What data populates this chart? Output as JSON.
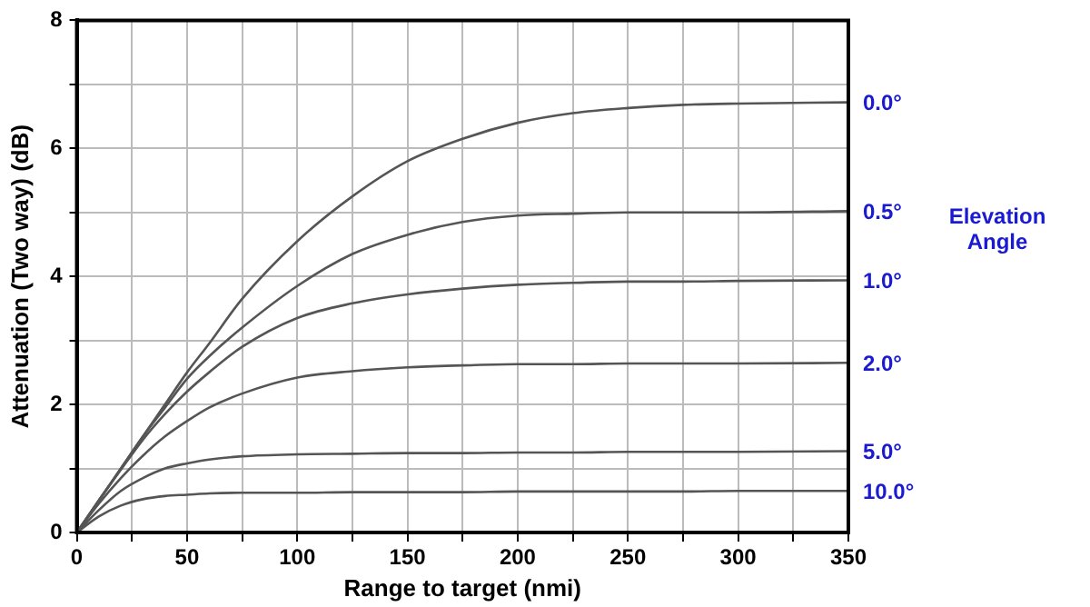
{
  "chart_data": {
    "type": "line",
    "xlabel": "Range to target (nmi)",
    "ylabel": "Attenuation (Two way) (dB)",
    "legend_title": "Elevation Angle",
    "x": [
      0,
      10,
      20,
      30,
      40,
      50,
      60,
      75,
      100,
      125,
      150,
      175,
      200,
      225,
      250,
      275,
      300,
      350
    ],
    "xlim": [
      0,
      350
    ],
    "xticks": [
      0,
      {
        "value": 25,
        "label": null
      },
      50,
      {
        "value": 75,
        "label": null
      },
      100,
      {
        "value": 125,
        "label": null
      },
      150,
      {
        "value": 175,
        "label": null
      },
      200,
      {
        "value": 225,
        "label": null
      },
      250,
      {
        "value": 275,
        "label": null
      },
      300,
      {
        "value": 325,
        "label": null
      },
      350
    ],
    "ylim": [
      0,
      8
    ],
    "yticks": [
      0,
      {
        "value": 1,
        "label": null
      },
      2,
      {
        "value": 3,
        "label": null
      },
      4,
      {
        "value": 5,
        "label": null
      },
      6,
      {
        "value": 7,
        "label": null
      },
      8
    ],
    "grid": true,
    "marker": "none",
    "line_style": "solid",
    "series": [
      {
        "name": "0.0°",
        "color": "#555555",
        "values": [
          0,
          0.5,
          1.0,
          1.5,
          2.0,
          2.5,
          2.95,
          3.65,
          4.55,
          5.25,
          5.8,
          6.15,
          6.4,
          6.55,
          6.63,
          6.68,
          6.7,
          6.72
        ]
      },
      {
        "name": "0.5°",
        "color": "#555555",
        "values": [
          0,
          0.5,
          1.0,
          1.5,
          1.95,
          2.4,
          2.75,
          3.2,
          3.85,
          4.35,
          4.65,
          4.85,
          4.95,
          4.98,
          5.0,
          5.0,
          5.0,
          5.02
        ]
      },
      {
        "name": "1.0°",
        "color": "#555555",
        "values": [
          0,
          0.5,
          0.98,
          1.45,
          1.85,
          2.2,
          2.5,
          2.9,
          3.35,
          3.58,
          3.72,
          3.81,
          3.87,
          3.9,
          3.92,
          3.92,
          3.93,
          3.94
        ]
      },
      {
        "name": "2.0°",
        "color": "#555555",
        "values": [
          0,
          0.45,
          0.85,
          1.2,
          1.5,
          1.74,
          1.95,
          2.17,
          2.42,
          2.52,
          2.58,
          2.61,
          2.63,
          2.63,
          2.64,
          2.64,
          2.64,
          2.65
        ]
      },
      {
        "name": "5.0°",
        "color": "#555555",
        "values": [
          0,
          0.35,
          0.65,
          0.85,
          1.0,
          1.08,
          1.14,
          1.19,
          1.22,
          1.23,
          1.24,
          1.24,
          1.25,
          1.25,
          1.26,
          1.26,
          1.26,
          1.27
        ]
      },
      {
        "name": "10.0°",
        "color": "#555555",
        "values": [
          0,
          0.25,
          0.42,
          0.52,
          0.57,
          0.59,
          0.61,
          0.62,
          0.62,
          0.63,
          0.63,
          0.63,
          0.64,
          0.64,
          0.64,
          0.64,
          0.65,
          0.65
        ]
      }
    ]
  }
}
